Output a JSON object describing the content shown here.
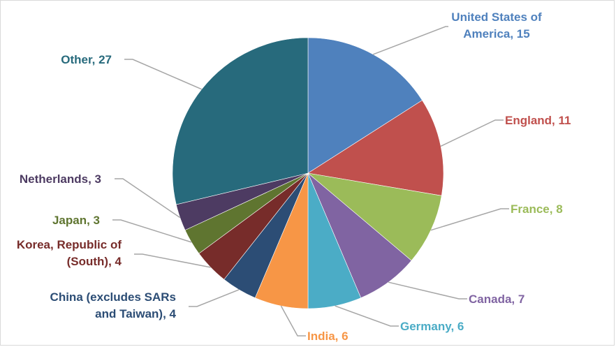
{
  "chart_data": {
    "type": "pie",
    "title": "",
    "start_angle_deg": 0,
    "direction": "clockwise",
    "slices": [
      {
        "label": "United States of America",
        "value": 15,
        "color": "#4F81BD",
        "text_lines": [
          "United States of",
          "America, 15"
        ]
      },
      {
        "label": "England",
        "value": 11,
        "color": "#C0504D",
        "text_lines": [
          "England, 11"
        ]
      },
      {
        "label": "France",
        "value": 8,
        "color": "#9BBB59",
        "text_lines": [
          "France, 8"
        ]
      },
      {
        "label": "Canada",
        "value": 7,
        "color": "#8064A2",
        "text_lines": [
          "Canada, 7"
        ]
      },
      {
        "label": "Germany",
        "value": 6,
        "color": "#4BACC6",
        "text_lines": [
          "Germany, 6"
        ]
      },
      {
        "label": "India",
        "value": 6,
        "color": "#F79646",
        "text_lines": [
          "India, 6"
        ]
      },
      {
        "label": "China (excludes SARs and Taiwan)",
        "value": 4,
        "color": "#2C4D75",
        "text_lines": [
          "China (excludes SARs",
          "and Taiwan), 4"
        ]
      },
      {
        "label": "Korea, Republic of (South)",
        "value": 4,
        "color": "#772C2A",
        "text_lines": [
          "Korea, Republic of",
          "(South), 4"
        ]
      },
      {
        "label": "Japan",
        "value": 3,
        "color": "#5F7530",
        "text_lines": [
          "Japan, 3"
        ]
      },
      {
        "label": "Netherlands",
        "value": 3,
        "color": "#4D3B62",
        "text_lines": [
          "Netherlands, 3"
        ]
      },
      {
        "label": "Other",
        "value": 27,
        "color": "#276A7C",
        "text_lines": [
          "Other, 27"
        ]
      }
    ]
  }
}
